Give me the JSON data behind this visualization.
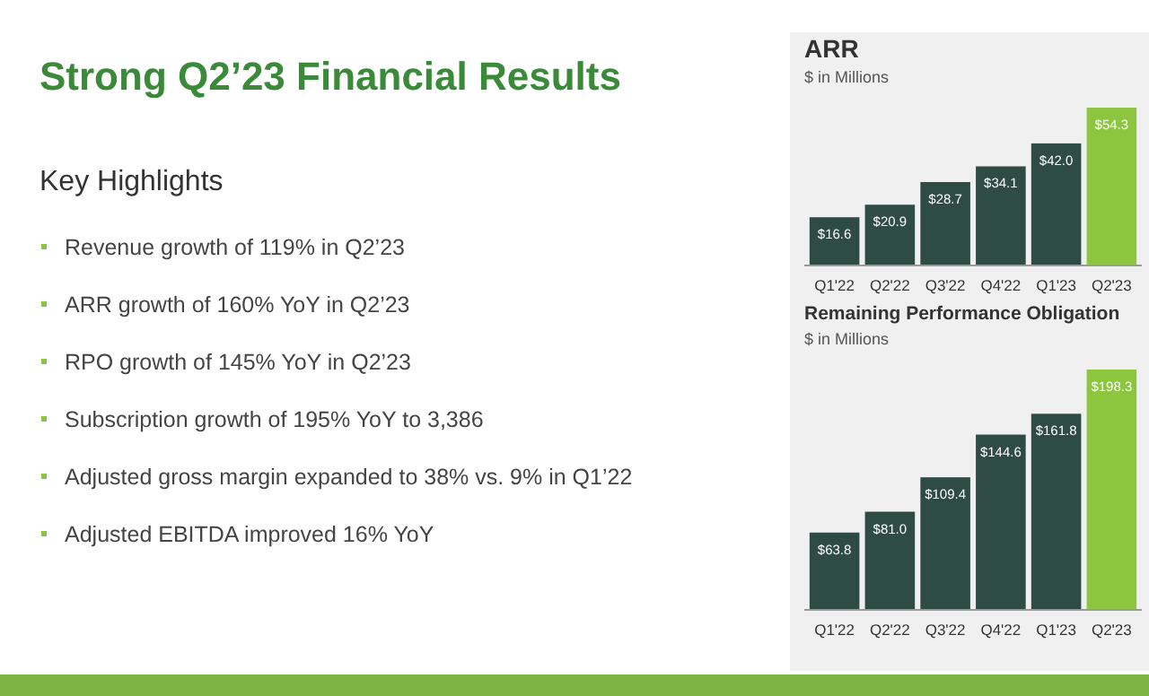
{
  "chart_data": [
    {
      "type": "other",
      "title": "Strong Q2’23 Financial Results",
      "subtitle": "Key Highlights",
      "annotations": [
        "Revenue growth of 119% in Q2’23",
        "ARR growth of 160% YoY in Q2’23",
        "RPO growth of 145% YoY in Q2’23",
        "Subscription growth of 195% YoY to 3,386",
        "Adjusted gross margin expanded to 38% vs. 9% in Q1’22",
        "Adjusted EBITDA improved 16% YoY"
      ]
    },
    {
      "type": "bar",
      "title": "ARR",
      "subtitle": "$ in Millions",
      "categories": [
        "Q1'22",
        "Q2'22",
        "Q3'22",
        "Q4'22",
        "Q1'23",
        "Q2'23"
      ],
      "values": [
        16.6,
        20.9,
        28.7,
        34.1,
        42.0,
        54.3
      ],
      "value_labels": [
        "$16.6",
        "$20.9",
        "$28.7",
        "$34.1",
        "$42.0",
        "$54.3"
      ],
      "colors": [
        "#2e4b44",
        "#2e4b44",
        "#2e4b44",
        "#2e4b44",
        "#2e4b44",
        "#8cc63f"
      ]
    },
    {
      "type": "bar",
      "title": "Remaining Performance Obligation",
      "subtitle": "$ in Millions",
      "categories": [
        "Q1'22",
        "Q2'22",
        "Q3'22",
        "Q4'22",
        "Q1'23",
        "Q2'23"
      ],
      "values": [
        63.8,
        81.0,
        109.4,
        144.6,
        161.8,
        198.3
      ],
      "value_labels": [
        "$63.8",
        "$81.0",
        "$109.4",
        "$144.6",
        "$161.8",
        "$198.3"
      ],
      "colors": [
        "#2e4b44",
        "#2e4b44",
        "#2e4b44",
        "#2e4b44",
        "#2e4b44",
        "#8cc63f"
      ]
    }
  ]
}
